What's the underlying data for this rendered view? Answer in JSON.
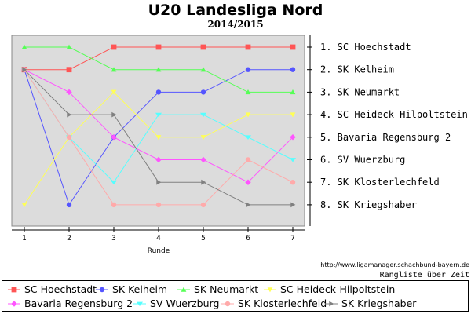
{
  "chart_data": {
    "type": "line",
    "title": "U20 Landesliga Nord",
    "subtitle": "2014/2015",
    "xlabel": "Runde",
    "x": [
      1,
      2,
      3,
      4,
      5,
      6,
      7
    ],
    "ylim": [
      8,
      1
    ],
    "y_inverted": true,
    "grid": false,
    "right_labels": [
      "1. SC Hoechstadt",
      "2. SK Kelheim",
      "3. SK Neumarkt",
      "4. SC Heideck-Hilpoltstein",
      "5. Bavaria Regensburg 2",
      "6. SV Wuerzburg",
      "7. SK Klosterlechfeld",
      "8. SK Kriegshaber"
    ],
    "series": [
      {
        "name": "SC Hoechstadt",
        "values": [
          2,
          2,
          1,
          1,
          1,
          1,
          1
        ],
        "color": "#ff5555",
        "marker": "square"
      },
      {
        "name": "SK Kelheim",
        "values": [
          2,
          8,
          5,
          3,
          3,
          2,
          2
        ],
        "color": "#5555ff",
        "marker": "circle"
      },
      {
        "name": "SK Neumarkt",
        "values": [
          1,
          1,
          2,
          2,
          2,
          3,
          3
        ],
        "color": "#55ff55",
        "marker": "triangle-up"
      },
      {
        "name": "SC Heideck-Hilpoltstein",
        "values": [
          8,
          5,
          3,
          5,
          5,
          4,
          4
        ],
        "color": "#ffff55",
        "marker": "triangle-down"
      },
      {
        "name": "Bavaria Regensburg 2",
        "values": [
          2,
          3,
          5,
          6,
          6,
          7,
          5
        ],
        "color": "#ff55ff",
        "marker": "diamond"
      },
      {
        "name": "SV Wuerzburg",
        "values": [
          2,
          5,
          7,
          4,
          4,
          5,
          6
        ],
        "color": "#55ffff",
        "marker": "triangle-down-wide"
      },
      {
        "name": "SK Klosterlechfeld",
        "values": [
          2,
          5,
          8,
          8,
          8,
          6,
          7
        ],
        "color": "#ffaaaa",
        "marker": "circle"
      },
      {
        "name": "SK Kriegshaber",
        "values": [
          2,
          4,
          4,
          7,
          7,
          8,
          8
        ],
        "color": "#808080",
        "marker": "triangle-right"
      }
    ]
  },
  "footer": {
    "source": "http://www.ligamanager.schachbund-bayern.de",
    "note": "Rangliste über Zeit"
  }
}
